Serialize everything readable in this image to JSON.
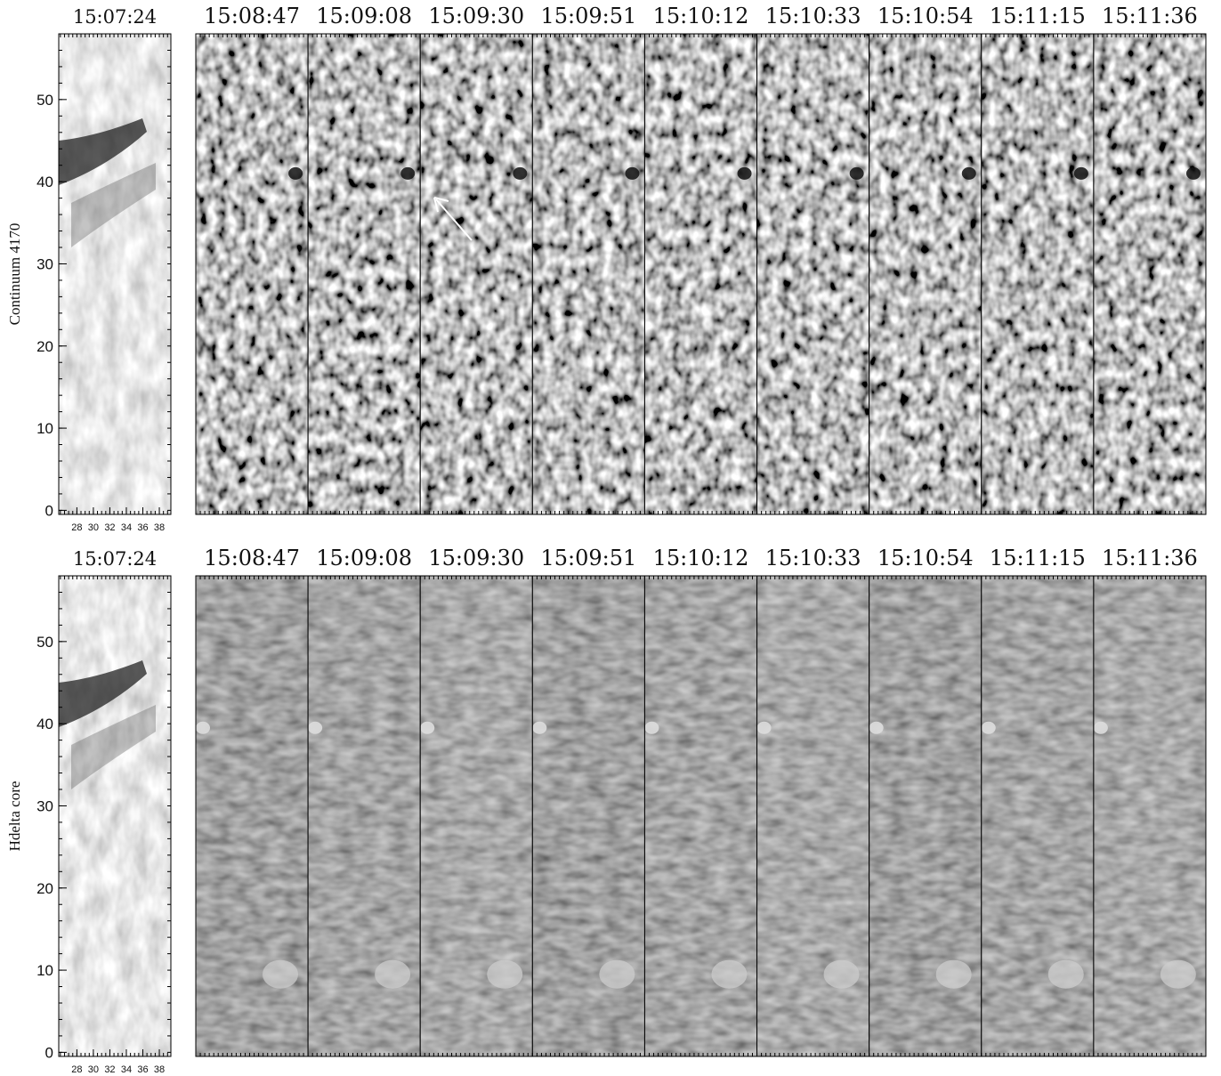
{
  "panels": [
    {
      "ylabel": "Continuum 4170",
      "reference_time": "15:07:24",
      "times": [
        "15:08:47",
        "15:09:08",
        "15:09:30",
        "15:09:51",
        "15:10:12",
        "15:10:33",
        "15:10:54",
        "15:11:15",
        "15:11:36"
      ],
      "ylim": [
        -0.5,
        58
      ],
      "yticks": [
        0,
        10,
        20,
        30,
        40,
        50
      ],
      "xlim": [
        25.8,
        39.4
      ],
      "xticks": [
        28,
        30,
        32,
        34,
        36,
        38
      ]
    },
    {
      "ylabel": "Hdelta core",
      "reference_time": "15:07:24",
      "times": [
        "15:08:47",
        "15:09:08",
        "15:09:30",
        "15:09:51",
        "15:10:12",
        "15:10:33",
        "15:10:54",
        "15:11:15",
        "15:11:36"
      ],
      "ylim": [
        -0.5,
        58
      ],
      "yticks": [
        0,
        10,
        20,
        30,
        40,
        50
      ],
      "xlim": [
        25.8,
        39.4
      ],
      "xticks": [
        28,
        30,
        32,
        34,
        36,
        38
      ]
    }
  ]
}
